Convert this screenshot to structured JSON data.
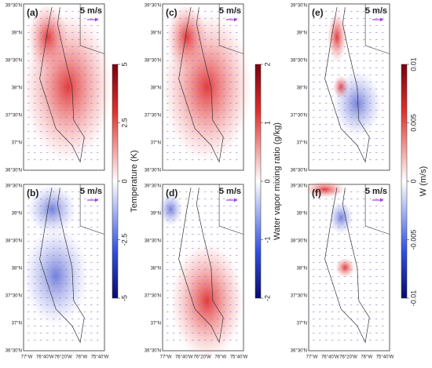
{
  "panels": [
    {
      "label": "(a)",
      "scale": "5 m/s"
    },
    {
      "label": "(b)",
      "scale": "5 m/s"
    },
    {
      "label": "(c)",
      "scale": "5 m/s"
    },
    {
      "label": "(d)",
      "scale": "5 m/s"
    },
    {
      "label": "(e)",
      "scale": "5 m/s"
    },
    {
      "label": "(f)",
      "scale": "5 m/s"
    }
  ],
  "lat_labels": [
    "39°30'N",
    "39°N",
    "38°30'N",
    "38°N",
    "37°30'N",
    "37°N",
    "36°30'N"
  ],
  "lon_labels": [
    "77°W",
    "76°40'W",
    "76°20'W",
    "76°W",
    "75°40'W"
  ],
  "colorbars": [
    {
      "label": "Temperature (K)",
      "lim": [
        -5,
        5
      ],
      "ticks": [
        5,
        2.5,
        0,
        -2.5,
        -5
      ]
    },
    {
      "label": "Water vapor mixing ratio (g/kg)",
      "lim": [
        -2,
        2
      ],
      "ticks": [
        2,
        1,
        0,
        -1,
        -2
      ]
    },
    {
      "label": "W (m/s)",
      "lim": [
        -0.01,
        0.01
      ],
      "ticks": [
        0.01,
        0.005,
        0,
        -0.005,
        -0.01
      ]
    }
  ]
}
